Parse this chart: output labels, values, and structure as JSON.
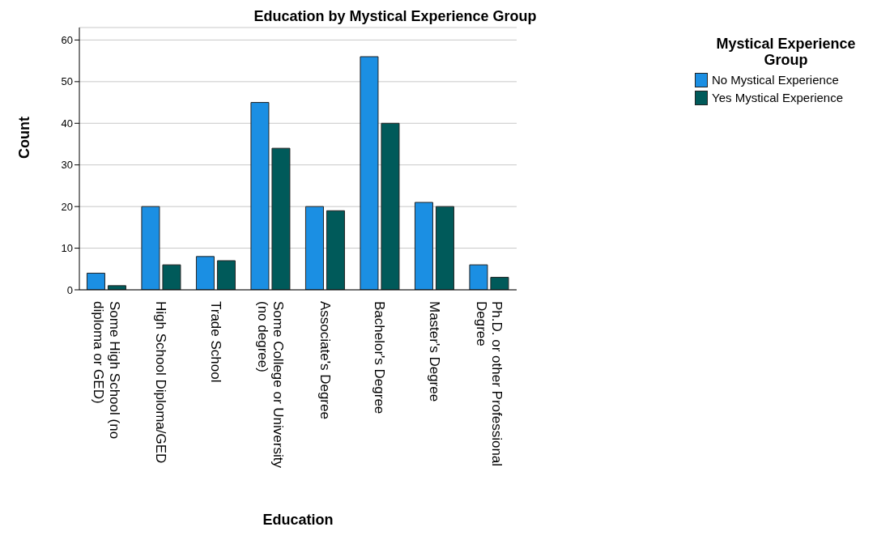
{
  "chart_data": {
    "type": "bar",
    "title": "Education by Mystical Experience Group",
    "xlabel": "Education",
    "ylabel": "Count",
    "legend_title": "Mystical Experience Group",
    "categories": [
      "Some High School (no diploma or GED)",
      "High School Diploma/GED",
      "Trade School",
      "Some College or University (no degree)",
      "Associate's Degree",
      "Bachelor's Degree",
      "Master's Degree",
      "Ph.D. or other Professional Degree"
    ],
    "series": [
      {
        "name": "No Mystical Experience",
        "color": "#1b8fe3",
        "values": [
          4,
          20,
          8,
          45,
          20,
          56,
          21,
          6
        ]
      },
      {
        "name": "Yes Mystical Experience",
        "color": "#005a5a",
        "values": [
          1,
          6,
          7,
          34,
          19,
          40,
          20,
          3
        ]
      }
    ],
    "ylim": [
      0,
      63
    ],
    "yticks": [
      0,
      10,
      20,
      30,
      40,
      50,
      60
    ],
    "grid": "y",
    "legend": "top right"
  }
}
